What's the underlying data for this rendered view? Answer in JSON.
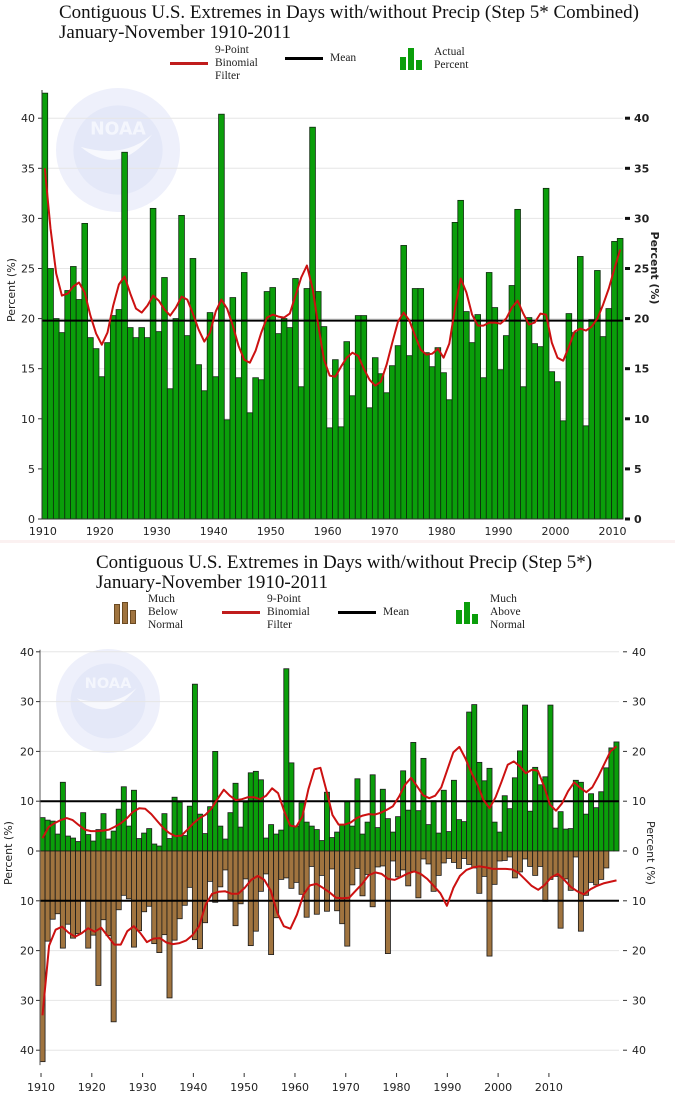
{
  "chart_data": [
    {
      "type": "bar",
      "title": "Contiguous U.S. Extremes in Days with/without Precip (Step 5* Combined)",
      "subtitle": "January-November 1910-2011",
      "xlabel": "",
      "ylabel": "Percent (%)",
      "ylabel_right": "Percent (%)",
      "xlim": [
        1910,
        2011
      ],
      "ylim": [
        0,
        43
      ],
      "y_ticks": [
        0,
        5,
        10,
        15,
        20,
        25,
        30,
        35,
        40
      ],
      "x_ticks": [
        1910,
        1920,
        1930,
        1940,
        1950,
        1960,
        1970,
        1980,
        1990,
        2000,
        2010
      ],
      "grid": true,
      "legend": [
        {
          "label": "9-Point\nBinomial\nFilter",
          "kind": "line",
          "color": "#cc1111"
        },
        {
          "label": "Mean",
          "kind": "line",
          "color": "#000000"
        },
        {
          "label": "Actual\nPercent",
          "kind": "bars",
          "color": "#0a9e0a"
        }
      ],
      "legend_placement": "top-center",
      "mean": 19.8,
      "colors": {
        "bar": "#0a9e0a",
        "bar_edge": "#0d2a0d",
        "filter": "#cc1111",
        "mean": "#000000",
        "grid": "#e6e6e6"
      },
      "series": [
        {
          "name": "Actual Percent",
          "x_start": 1910,
          "values": [
            42.5,
            25.0,
            20.0,
            18.6,
            22.8,
            25.2,
            21.9,
            29.5,
            18.1,
            17.0,
            14.2,
            17.6,
            20.3,
            20.9,
            36.6,
            19.1,
            18.1,
            19.1,
            18.1,
            31.0,
            18.7,
            24.1,
            13.0,
            20.0,
            30.3,
            18.3,
            26.0,
            15.4,
            12.8,
            20.6,
            14.2,
            40.4,
            9.9,
            22.1,
            14.1,
            24.6,
            10.6,
            14.1,
            13.9,
            22.7,
            23.1,
            18.5,
            20.0,
            19.1,
            24.0,
            13.2,
            23.0,
            39.1,
            22.7,
            19.2,
            9.1,
            15.9,
            9.2,
            17.7,
            12.3,
            20.3,
            20.3,
            11.1,
            16.1,
            14.5,
            12.6,
            15.3,
            17.3,
            27.3,
            16.3,
            23.0,
            23.0,
            16.6,
            15.2,
            17.1,
            14.6,
            11.9,
            29.6,
            31.8,
            20.7,
            17.6,
            20.4,
            14.1,
            24.6,
            21.1,
            14.9,
            18.3,
            23.3,
            30.9,
            13.2,
            20.1,
            17.5,
            17.2,
            33.0,
            14.7,
            13.7,
            9.8,
            20.5,
            18.6,
            26.2,
            9.3,
            19.9,
            24.8,
            18.2,
            21.0,
            27.7,
            28.0
          ]
        },
        {
          "name": "9-Point Binomial Filter",
          "x_start": 1910,
          "values": [
            35.0,
            29.0,
            24.5,
            22.3,
            22.5,
            23.2,
            23.6,
            22.6,
            20.3,
            18.5,
            17.4,
            18.6,
            21.3,
            23.4,
            24.2,
            22.5,
            21.0,
            20.6,
            21.3,
            22.3,
            21.8,
            20.9,
            20.3,
            21.1,
            22.2,
            21.9,
            20.5,
            18.9,
            17.7,
            18.6,
            20.7,
            21.9,
            21.0,
            19.3,
            17.3,
            15.9,
            15.6,
            16.8,
            18.6,
            20.1,
            20.4,
            20.2,
            20.1,
            20.5,
            22.3,
            24.1,
            25.3,
            23.0,
            19.3,
            15.9,
            14.3,
            14.2,
            15.2,
            16.1,
            16.6,
            16.3,
            15.0,
            13.9,
            13.3,
            13.7,
            15.4,
            17.6,
            19.7,
            20.6,
            19.8,
            18.3,
            16.9,
            16.4,
            16.5,
            17.0,
            16.1,
            17.5,
            21.0,
            24.0,
            22.6,
            20.4,
            19.3,
            19.3,
            19.6,
            19.6,
            19.5,
            20.0,
            21.1,
            21.8,
            20.5,
            19.4,
            19.6,
            20.5,
            20.4,
            17.6,
            16.1,
            15.8,
            17.2,
            18.7,
            19.0,
            18.8,
            19.2,
            20.0,
            21.4,
            23.0,
            25.0,
            26.9
          ]
        }
      ]
    },
    {
      "type": "bar",
      "title": "Contiguous U.S. Extremes in Days with/without Precip (Step 5*)",
      "subtitle": "January-November 1910-2011",
      "xlabel": "",
      "ylabel": "Percent (%)",
      "ylabel_right": "Percent (%)",
      "xlim": [
        1910,
        2011
      ],
      "ylim": [
        -43,
        40
      ],
      "y_ticks": [
        40,
        30,
        20,
        10,
        0,
        10,
        20,
        30,
        40
      ],
      "y_tick_values": [
        40,
        30,
        20,
        10,
        0,
        -10,
        -20,
        -30,
        -40
      ],
      "x_ticks": [
        1910,
        1920,
        1930,
        1940,
        1950,
        1960,
        1970,
        1980,
        1990,
        2000,
        2010
      ],
      "grid": true,
      "legend": [
        {
          "label": "Much\nBelow\nNormal",
          "kind": "bars",
          "color": "#a0743f"
        },
        {
          "label": "9-Point\nBinomial\nFilter",
          "kind": "line",
          "color": "#cc1111"
        },
        {
          "label": "Mean",
          "kind": "line",
          "color": "#000000"
        },
        {
          "label": "Much\nAbove\nNormal",
          "kind": "bars",
          "color": "#0a9e0a"
        }
      ],
      "legend_placement": "top-center",
      "mean_above": 10.0,
      "mean_below": 10.0,
      "colors": {
        "above": "#0a9e0a",
        "below": "#a0743f",
        "bar_edge": "#1a1a1a",
        "filter": "#cc1111",
        "mean": "#000000",
        "grid": "#e6e6e6"
      },
      "series": [
        {
          "name": "Much Above Normal",
          "x_start": 1910,
          "values": [
            6.7,
            6.2,
            6.0,
            3.4,
            13.8,
            3.0,
            2.6,
            1.9,
            7.7,
            3.3,
            2.0,
            4.3,
            7.5,
            2.4,
            4.0,
            8.4,
            12.9,
            5.0,
            12.2,
            2.5,
            3.6,
            4.5,
            1.4,
            1.0,
            7.5,
            2.5,
            10.8,
            9.8,
            3.1,
            9.0,
            33.5,
            7.4,
            3.5,
            8.9,
            20.0,
            5.0,
            2.4,
            7.7,
            13.6,
            4.8,
            9.8,
            15.7,
            16.0,
            14.3,
            2.6,
            5.3,
            3.4,
            4.2,
            36.6,
            17.7,
            5.0,
            9.7,
            5.8,
            5.0,
            4.3,
            2.1,
            11.8,
            2.7,
            3.8,
            5.3,
            9.9,
            5.0,
            14.5,
            3.4,
            5.8,
            15.3,
            4.7,
            12.4,
            6.5,
            3.8,
            6.9,
            16.1,
            8.2,
            21.8,
            8.1,
            18.6,
            5.3,
            10.1,
            3.6,
            12.2,
            3.9,
            14.2,
            6.3,
            5.9,
            27.9,
            29.4,
            17.8,
            14.1,
            16.6,
            5.8,
            3.8,
            11.1,
            8.5,
            14.7,
            20.1,
            29.3,
            8.0,
            16.8,
            13.3,
            14.9,
            29.3,
            4.6,
            7.9,
            4.4,
            4.5,
            14.2,
            13.8,
            7.4,
            11.5,
            8.7,
            11.9,
            16.7,
            20.7,
            21.9
          ]
        },
        {
          "name": "Much Below Normal",
          "x_start": 1910,
          "values": [
            42.3,
            18.1,
            13.7,
            12.6,
            19.5,
            14.7,
            17.5,
            16.6,
            9.9,
            19.5,
            16.9,
            27.0,
            13.8,
            17.0,
            34.3,
            11.8,
            8.9,
            9.6,
            19.3,
            16.0,
            12.2,
            11.1,
            18.6,
            20.4,
            16.8,
            29.5,
            17.9,
            13.6,
            10.9,
            7.3,
            17.8,
            19.6,
            14.4,
            6.1,
            10.3,
            7.2,
            3.8,
            9.8,
            15.0,
            10.6,
            5.6,
            19.0,
            16.1,
            8.1,
            4.6,
            20.8,
            13.4,
            5.7,
            5.4,
            7.5,
            6.3,
            8.7,
            13.3,
            3.1,
            12.7,
            4.9,
            12.1,
            3.6,
            12.0,
            14.6,
            19.1,
            6.8,
            3.5,
            9.0,
            4.7,
            11.2,
            3.2,
            3.0,
            20.6,
            2.0,
            5.2,
            3.8,
            7.0,
            4.1,
            9.4,
            1.6,
            2.6,
            8.1,
            4.9,
            2.4,
            1.5,
            2.3,
            3.5,
            1.5,
            2.7,
            3.4,
            8.5,
            5.1,
            21.1,
            6.7,
            2.0,
            1.9,
            1.2,
            5.4,
            4.2,
            1.6,
            3.1,
            4.9,
            3.1,
            10.1,
            5.7,
            5.1,
            15.5,
            5.6,
            7.9,
            1.2,
            16.1,
            8.9,
            6.3,
            6.8,
            5.7,
            3.4
          ]
        },
        {
          "name": "9-Point Binomial Filter (Above)",
          "x_start": 1910,
          "values": [
            2.6,
            4.8,
            5.6,
            6.2,
            6.6,
            6.2,
            5.2,
            4.3,
            4.0,
            4.0,
            4.1,
            4.3,
            4.9,
            5.6,
            6.6,
            7.9,
            8.6,
            8.5,
            7.4,
            6.0,
            4.6,
            3.6,
            3.0,
            3.1,
            4.3,
            5.6,
            6.6,
            7.3,
            8.6,
            10.5,
            12.3,
            11.1,
            10.2,
            10.4,
            10.8,
            10.8,
            10.4,
            11.1,
            12.6,
            11.6,
            8.0,
            5.1,
            4.9,
            6.9,
            12.4,
            16.4,
            16.7,
            12.1,
            7.2,
            5.3,
            5.3,
            5.7,
            6.6,
            7.1,
            7.4,
            7.3,
            7.7,
            8.3,
            9.0,
            10.9,
            13.3,
            14.7,
            13.0,
            11.2,
            10.6,
            11.1,
            12.8,
            16.3,
            19.8,
            20.9,
            18.6,
            15.7,
            13.3,
            10.2,
            8.6,
            10.8,
            14.0,
            17.3,
            18.0,
            17.0,
            15.6,
            16.3,
            16.1,
            13.0,
            9.3,
            8.1,
            9.6,
            12.0,
            13.8,
            12.7,
            11.8,
            12.8,
            15.0,
            17.5,
            20.0,
            21.0
          ]
        },
        {
          "name": "9-Point Binomial Filter (Below)",
          "x_start": 1910,
          "values": [
            33.0,
            19.0,
            15.8,
            15.2,
            16.4,
            17.2,
            16.5,
            15.5,
            16.2,
            15.4,
            17.1,
            18.8,
            18.8,
            16.1,
            15.1,
            16.5,
            18.3,
            17.6,
            17.5,
            18.4,
            18.7,
            18.5,
            18.0,
            16.9,
            15.1,
            10.8,
            8.6,
            8.2,
            8.1,
            8.6,
            8.6,
            7.4,
            5.8,
            5.0,
            5.8,
            8.0,
            12.4,
            15.1,
            15.6,
            12.8,
            8.8,
            6.9,
            6.6,
            7.4,
            8.3,
            9.4,
            9.5,
            9.4,
            8.0,
            6.6,
            4.9,
            4.3,
            4.6,
            5.6,
            5.8,
            5.2,
            4.5,
            4.1,
            4.6,
            5.6,
            7.0,
            8.5,
            11.0,
            7.4,
            5.0,
            3.8,
            3.3,
            3.1,
            3.3,
            3.6,
            3.6,
            3.6,
            3.7,
            4.4,
            5.7,
            7.0,
            7.8,
            6.8,
            5.3,
            4.6,
            5.8,
            7.2,
            8.1,
            8.7,
            7.7,
            7.0,
            6.5,
            6.2,
            5.9
          ]
        }
      ]
    }
  ],
  "charts": [
    {
      "title_line1": "Contiguous U.S. Extremes in Days with/without Precip (Step 5* Combined)",
      "title_line2": "January-November 1910-2011",
      "legend_filter": "9-Point\nBinomial\nFilter",
      "legend_mean": "Mean",
      "legend_actual": "Actual\nPercent",
      "ylabel_left": "Percent (%)",
      "ylabel_right": "Percent (%)"
    },
    {
      "title_line1": "Contiguous U.S. Extremes in Days with/without Precip (Step 5*)",
      "title_line2": "January-November 1910-2011",
      "legend_below": "Much\nBelow\nNormal",
      "legend_filter": "9-Point\nBinomial\nFilter",
      "legend_mean": "Mean",
      "legend_above": "Much\nAbove\nNormal",
      "ylabel_left": "Percent (%)",
      "ylabel_right": "Percent (%)"
    }
  ]
}
